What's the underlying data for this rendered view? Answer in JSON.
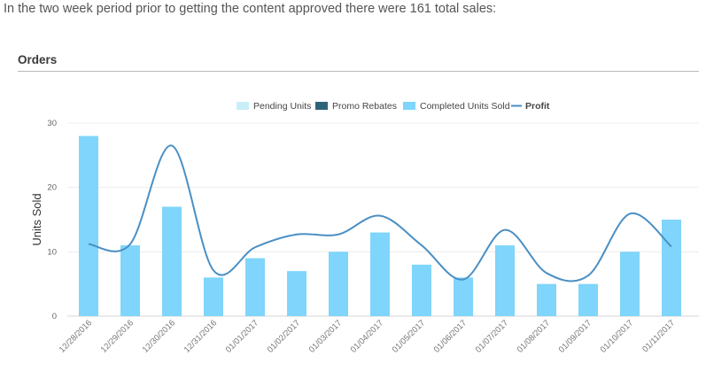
{
  "intro_text": "In the two week period prior to getting the content approved there were 161 total sales:",
  "section_title": "Orders",
  "chart_data": {
    "type": "bar",
    "categories": [
      "12/28/2016",
      "12/29/2016",
      "12/30/2016",
      "12/31/2016",
      "01/01/2017",
      "01/02/2017",
      "01/03/2017",
      "01/04/2017",
      "01/05/2017",
      "01/06/2017",
      "01/07/2017",
      "01/08/2017",
      "01/09/2017",
      "01/10/2017",
      "01/11/2017"
    ],
    "series": [
      {
        "name": "Pending Units",
        "type": "bar",
        "color": "#c8eef9",
        "values": [
          0,
          0,
          0,
          0,
          0,
          0,
          0,
          0,
          0,
          0,
          0,
          0,
          0,
          0,
          0
        ]
      },
      {
        "name": "Promo Rebates",
        "type": "bar",
        "color": "#2e6478",
        "values": [
          0,
          0,
          0,
          0,
          0,
          0,
          0,
          0,
          0,
          0,
          0,
          0,
          0,
          0,
          0
        ]
      },
      {
        "name": "Completed Units Sold",
        "type": "bar",
        "color": "#7fd5fb",
        "values": [
          28,
          11,
          17,
          6,
          9,
          7,
          10,
          13,
          8,
          6,
          11,
          5,
          5,
          10,
          15
        ]
      },
      {
        "name": "Profit",
        "type": "line",
        "color": "#4a8fc4",
        "values": [
          11.2,
          11.2,
          26.5,
          7.1,
          10.7,
          12.7,
          12.7,
          15.6,
          11,
          5.7,
          13.4,
          6.7,
          6.3,
          15.9,
          10.8
        ]
      }
    ],
    "ylabel": "Units Sold",
    "ylim": [
      0,
      30
    ],
    "yticks": [
      0,
      10,
      20,
      30
    ],
    "grid": true,
    "legend": "top-center"
  }
}
